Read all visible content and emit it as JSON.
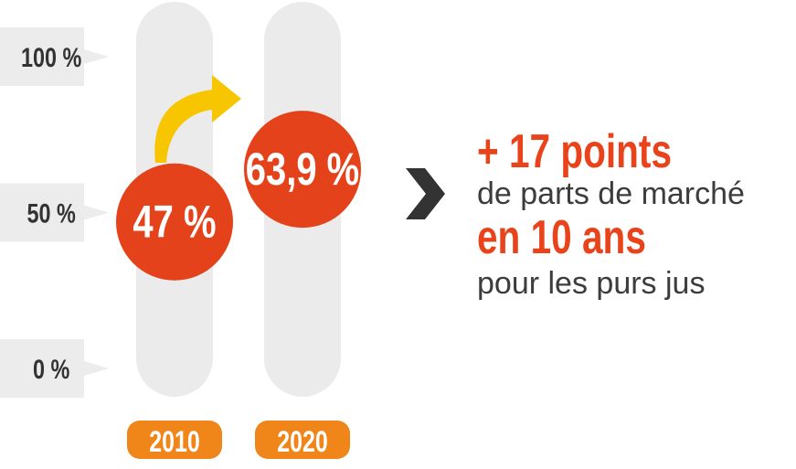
{
  "chart_data": {
    "type": "bar",
    "categories": [
      "2010",
      "2020"
    ],
    "values": [
      47,
      63.9
    ],
    "value_labels": [
      "47 %",
      "63,9 %"
    ],
    "ylim": [
      0,
      100
    ],
    "yticks": [
      {
        "value": 100,
        "label": "100 %"
      },
      {
        "value": 50,
        "label": "50 %"
      },
      {
        "value": 0,
        "label": "0 %"
      }
    ],
    "title": "",
    "xlabel": "",
    "ylabel": ""
  },
  "callout": {
    "line1": "+ 17 points",
    "line2": "de parts de marché",
    "line3": "en 10 ans",
    "line4": "pour les purs jus"
  },
  "colors": {
    "value_circle": "#e3421a",
    "year_label_bg": "#f0861a",
    "track": "#ebebeb",
    "tick_bg": "#ececec",
    "arrow": "#f7c600",
    "chevron": "#333333",
    "highlight_text": "#e8431a"
  },
  "icons": {
    "trend_arrow": "curved-up-arrow-icon",
    "pointer": "chevron-right-icon"
  }
}
